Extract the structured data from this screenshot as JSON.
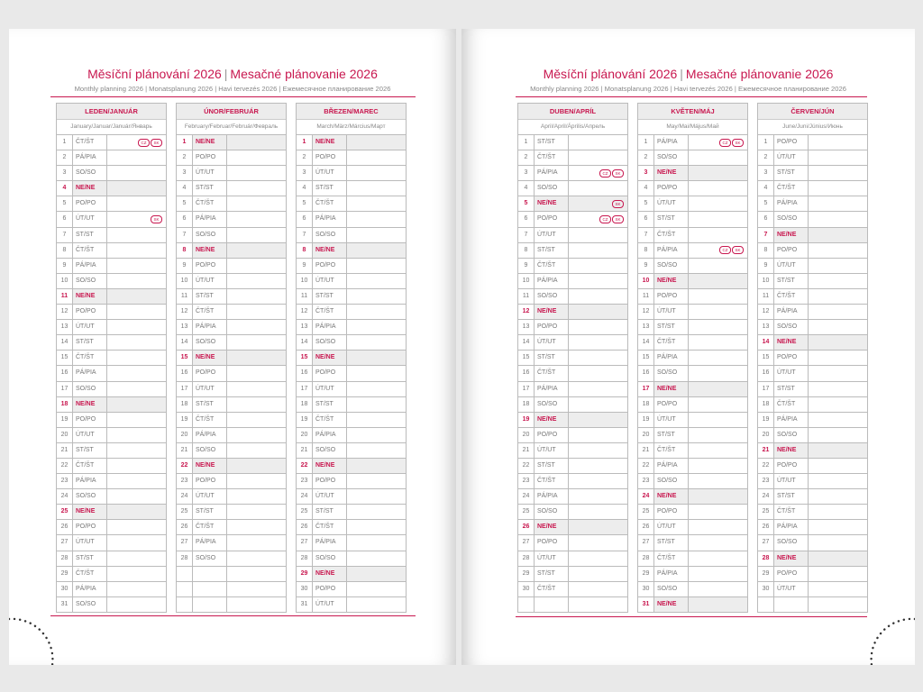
{
  "title_cz": "Měsíční plánování 2026",
  "title_sk": "Mesačné plánovanie 2026",
  "subtitle": "Monthly planning 2026 | Monatsplanung 2026 | Havi tervezés 2026 | Ежемесячное планирование 2026",
  "weekdays": [
    "PO/PO",
    "ÚT/UT",
    "ST/ST",
    "ČT/ŠT",
    "PÁ/PIA",
    "SO/SO",
    "NE/NE"
  ],
  "colors": {
    "accent": "#c8174f",
    "weekend_bg": "#ededed"
  },
  "months": [
    {
      "name": "LEDEN/JANUÁR",
      "sub": "January/Januar/Január/Январь",
      "start": 3,
      "days": 31,
      "holidays": {
        "1": [
          "CZ",
          "SK"
        ],
        "6": [
          "SK"
        ]
      }
    },
    {
      "name": "ÚNOR/FEBRUÁR",
      "sub": "February/Februar/Február/Февраль",
      "start": 6,
      "days": 28,
      "holidays": {}
    },
    {
      "name": "BŘEZEN/MAREC",
      "sub": "March/März/Március/Март",
      "start": 6,
      "days": 31,
      "holidays": {}
    },
    {
      "name": "DUBEN/APRÍL",
      "sub": "April/April/Április/Апрель",
      "start": 2,
      "days": 30,
      "holidays": {
        "3": [
          "CZ",
          "SK"
        ],
        "5": [
          "SK"
        ],
        "6": [
          "CZ",
          "SK"
        ]
      }
    },
    {
      "name": "KVĚTEN/MÁJ",
      "sub": "May/Mai/Május/Май",
      "start": 4,
      "days": 31,
      "holidays": {
        "1": [
          "CZ",
          "SK"
        ],
        "8": [
          "CZ",
          "SK"
        ]
      }
    },
    {
      "name": "ČERVEN/JÚN",
      "sub": "June/Juni/Június/Июнь",
      "start": 0,
      "days": 30,
      "holidays": {}
    }
  ]
}
